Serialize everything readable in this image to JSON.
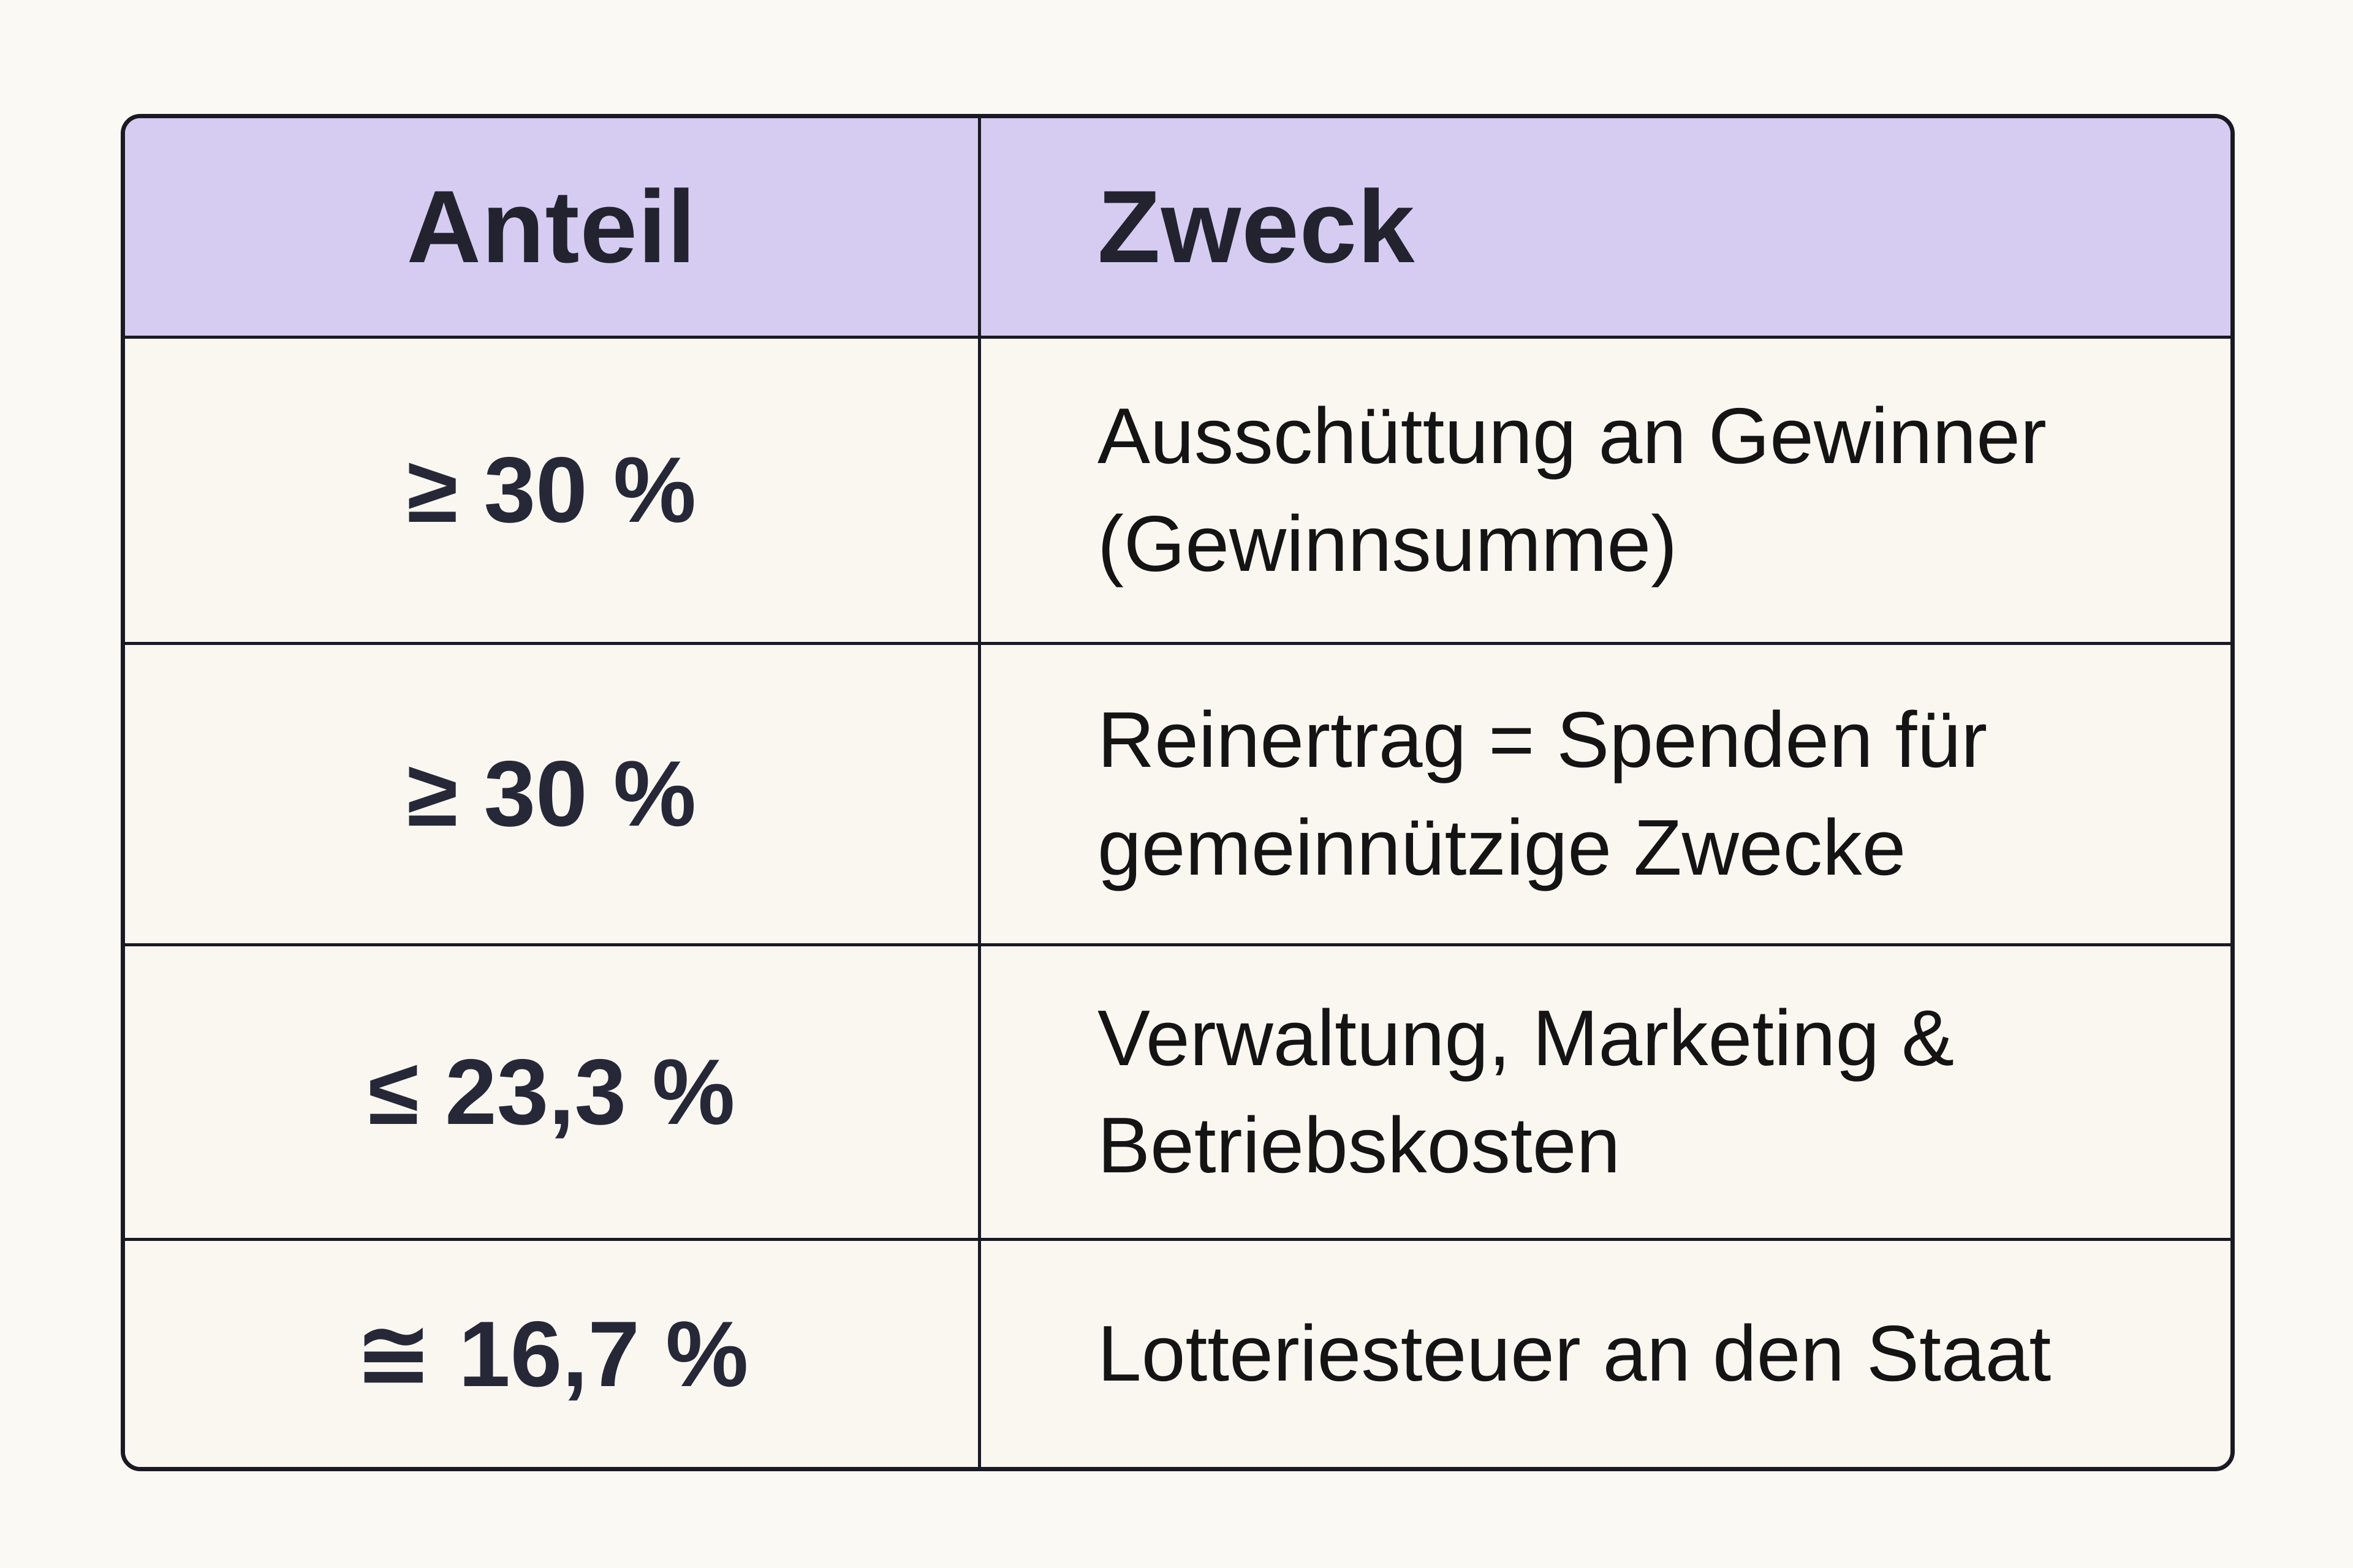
{
  "chart_data": {
    "type": "table",
    "columns": [
      "Anteil",
      "Zweck"
    ],
    "rows": [
      [
        "≥ 30 %",
        "Ausschüttung an Gewinner (Gewinnsumme)"
      ],
      [
        "≥ 30 %",
        "Reinertrag = Spenden für gemeinnützige Zwecke"
      ],
      [
        "≤ 23,3 %",
        "Verwaltung, Marketing & Betriebskosten"
      ],
      [
        "≅ 16,7 %",
        "Lotteriesteuer an den Staat"
      ]
    ],
    "layout": {
      "header_align": "left-column-centered",
      "grid": "on",
      "rounded_outer_border": true
    },
    "colors": {
      "header_bg": "#d6ccf2",
      "cell_bg": "#faf7f1",
      "page_bg": "#fbf9f4",
      "border": "#191a22",
      "header_text": "#22232f",
      "value_text": "#262838",
      "body_text": "#141414"
    }
  }
}
